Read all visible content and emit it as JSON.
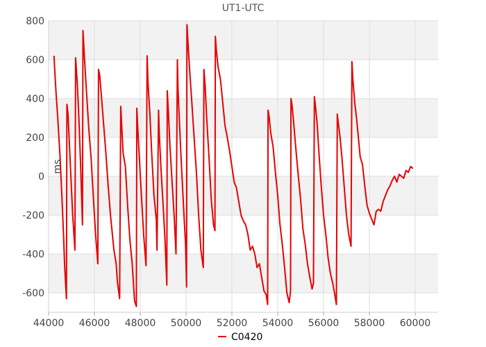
{
  "chart_data": {
    "type": "line",
    "title": "UT1-UTC",
    "xlabel": "",
    "ylabel": "ms",
    "xlim": [
      44000,
      61000
    ],
    "ylim": [
      -700,
      800
    ],
    "xticks": [
      44000,
      46000,
      48000,
      50000,
      52000,
      54000,
      56000,
      58000,
      60000
    ],
    "yticks": [
      -600,
      -400,
      -200,
      0,
      200,
      400,
      600,
      800
    ],
    "grid": true,
    "legend_position": "bottom",
    "series": [
      {
        "name": "C0420",
        "color": "#e60000",
        "points": [
          [
            44240,
            620
          ],
          [
            44260,
            560
          ],
          [
            44330,
            420
          ],
          [
            44400,
            300
          ],
          [
            44500,
            100
          ],
          [
            44580,
            -100
          ],
          [
            44650,
            -300
          ],
          [
            44700,
            -460
          ],
          [
            44780,
            -630
          ],
          [
            44800,
            370
          ],
          [
            44850,
            320
          ],
          [
            44950,
            60
          ],
          [
            45050,
            -200
          ],
          [
            45150,
            -380
          ],
          [
            45180,
            610
          ],
          [
            45250,
            480
          ],
          [
            45320,
            300
          ],
          [
            45400,
            50
          ],
          [
            45480,
            -250
          ],
          [
            45500,
            750
          ],
          [
            45560,
            620
          ],
          [
            45650,
            440
          ],
          [
            45750,
            250
          ],
          [
            45850,
            100
          ],
          [
            45950,
            -100
          ],
          [
            46050,
            -300
          ],
          [
            46150,
            -450
          ],
          [
            46180,
            550
          ],
          [
            46230,
            520
          ],
          [
            46300,
            420
          ],
          [
            46400,
            270
          ],
          [
            46500,
            120
          ],
          [
            46600,
            -50
          ],
          [
            46700,
            -200
          ],
          [
            46850,
            -380
          ],
          [
            46950,
            -450
          ],
          [
            47000,
            -540
          ],
          [
            47100,
            -630
          ],
          [
            47150,
            360
          ],
          [
            47200,
            240
          ],
          [
            47250,
            120
          ],
          [
            47350,
            50
          ],
          [
            47450,
            -150
          ],
          [
            47550,
            -330
          ],
          [
            47650,
            -450
          ],
          [
            47750,
            -640
          ],
          [
            47830,
            -670
          ],
          [
            47850,
            350
          ],
          [
            47880,
            280
          ],
          [
            47950,
            120
          ],
          [
            48050,
            -100
          ],
          [
            48150,
            -300
          ],
          [
            48250,
            -460
          ],
          [
            48300,
            620
          ],
          [
            48340,
            480
          ],
          [
            48420,
            320
          ],
          [
            48500,
            120
          ],
          [
            48600,
            -100
          ],
          [
            48700,
            -220
          ],
          [
            48730,
            -380
          ],
          [
            48800,
            340
          ],
          [
            48830,
            220
          ],
          [
            48900,
            50
          ],
          [
            49000,
            -150
          ],
          [
            49080,
            -320
          ],
          [
            49160,
            -560
          ],
          [
            49180,
            440
          ],
          [
            49220,
            350
          ],
          [
            49300,
            150
          ],
          [
            49400,
            -50
          ],
          [
            49480,
            -200
          ],
          [
            49560,
            -400
          ],
          [
            49620,
            600
          ],
          [
            49650,
            450
          ],
          [
            49720,
            250
          ],
          [
            49800,
            50
          ],
          [
            49900,
            -180
          ],
          [
            49980,
            -350
          ],
          [
            50020,
            -570
          ],
          [
            50040,
            780
          ],
          [
            50080,
            700
          ],
          [
            50150,
            560
          ],
          [
            50250,
            380
          ],
          [
            50350,
            200
          ],
          [
            50450,
            20
          ],
          [
            50550,
            -200
          ],
          [
            50650,
            -380
          ],
          [
            50750,
            -470
          ],
          [
            50780,
            550
          ],
          [
            50830,
            470
          ],
          [
            50900,
            300
          ],
          [
            51000,
            100
          ],
          [
            51100,
            -120
          ],
          [
            51200,
            -250
          ],
          [
            51260,
            -280
          ],
          [
            51280,
            720
          ],
          [
            51320,
            650
          ],
          [
            51400,
            560
          ],
          [
            51500,
            500
          ],
          [
            51600,
            380
          ],
          [
            51700,
            260
          ],
          [
            51800,
            200
          ],
          [
            51900,
            130
          ],
          [
            52000,
            50
          ],
          [
            52100,
            -30
          ],
          [
            52200,
            -60
          ],
          [
            52300,
            -130
          ],
          [
            52400,
            -200
          ],
          [
            52500,
            -230
          ],
          [
            52600,
            -250
          ],
          [
            52700,
            -300
          ],
          [
            52800,
            -380
          ],
          [
            52900,
            -360
          ],
          [
            53000,
            -400
          ],
          [
            53100,
            -470
          ],
          [
            53200,
            -450
          ],
          [
            53300,
            -520
          ],
          [
            53400,
            -590
          ],
          [
            53500,
            -610
          ],
          [
            53560,
            -660
          ],
          [
            53580,
            340
          ],
          [
            53620,
            310
          ],
          [
            53700,
            220
          ],
          [
            53800,
            150
          ],
          [
            53900,
            20
          ],
          [
            54000,
            -100
          ],
          [
            54100,
            -250
          ],
          [
            54200,
            -350
          ],
          [
            54300,
            -470
          ],
          [
            54400,
            -600
          ],
          [
            54500,
            -650
          ],
          [
            54560,
            -590
          ],
          [
            54580,
            400
          ],
          [
            54620,
            370
          ],
          [
            54700,
            270
          ],
          [
            54800,
            130
          ],
          [
            54900,
            0
          ],
          [
            55000,
            -120
          ],
          [
            55100,
            -270
          ],
          [
            55200,
            -350
          ],
          [
            55300,
            -450
          ],
          [
            55400,
            -520
          ],
          [
            55500,
            -580
          ],
          [
            55560,
            -550
          ],
          [
            55600,
            410
          ],
          [
            55640,
            370
          ],
          [
            55720,
            270
          ],
          [
            55800,
            120
          ],
          [
            55900,
            -50
          ],
          [
            56000,
            -200
          ],
          [
            56100,
            -300
          ],
          [
            56200,
            -420
          ],
          [
            56300,
            -500
          ],
          [
            56400,
            -550
          ],
          [
            56480,
            -600
          ],
          [
            56560,
            -660
          ],
          [
            56600,
            320
          ],
          [
            56640,
            280
          ],
          [
            56720,
            200
          ],
          [
            56800,
            100
          ],
          [
            56900,
            -50
          ],
          [
            57000,
            -200
          ],
          [
            57100,
            -300
          ],
          [
            57200,
            -360
          ],
          [
            57240,
            590
          ],
          [
            57280,
            500
          ],
          [
            57360,
            380
          ],
          [
            57440,
            300
          ],
          [
            57520,
            200
          ],
          [
            57600,
            100
          ],
          [
            57700,
            60
          ],
          [
            57800,
            -50
          ],
          [
            57900,
            -150
          ],
          [
            58000,
            -190
          ],
          [
            58100,
            -220
          ],
          [
            58200,
            -250
          ],
          [
            58300,
            -180
          ],
          [
            58400,
            -170
          ],
          [
            58500,
            -180
          ],
          [
            58600,
            -130
          ],
          [
            58700,
            -100
          ],
          [
            58800,
            -70
          ],
          [
            58900,
            -50
          ],
          [
            59000,
            -20
          ],
          [
            59100,
            0
          ],
          [
            59200,
            -30
          ],
          [
            59300,
            10
          ],
          [
            59400,
            0
          ],
          [
            59500,
            -10
          ],
          [
            59600,
            30
          ],
          [
            59700,
            20
          ],
          [
            59800,
            50
          ],
          [
            59900,
            40
          ]
        ]
      }
    ]
  }
}
